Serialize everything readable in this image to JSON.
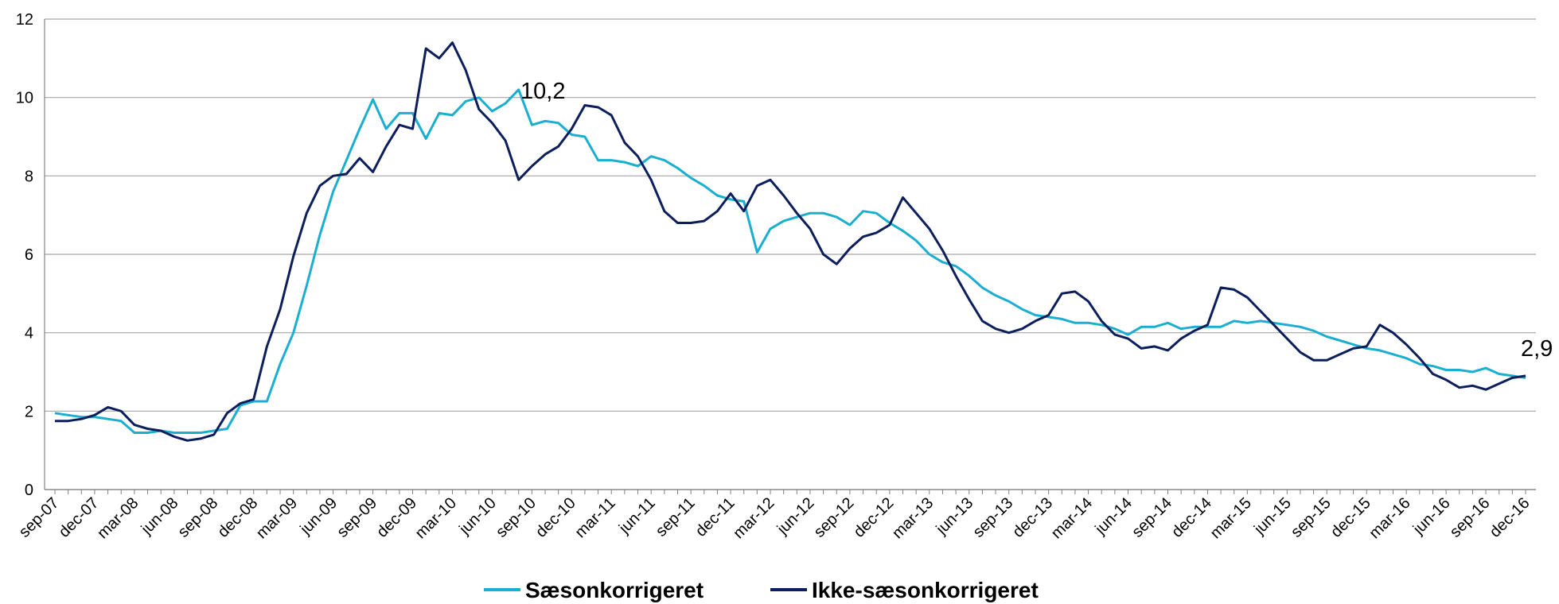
{
  "chart_data": {
    "type": "line",
    "categories": [
      "sep-07",
      null,
      null,
      "dec-07",
      null,
      null,
      "mar-08",
      null,
      null,
      "jun-08",
      null,
      null,
      "sep-08",
      null,
      null,
      "dec-08",
      null,
      null,
      "mar-09",
      null,
      null,
      "jun-09",
      null,
      null,
      "sep-09",
      null,
      null,
      "dec-09",
      null,
      null,
      "mar-10",
      null,
      null,
      "jun-10",
      null,
      null,
      "sep-10",
      null,
      null,
      "dec-10",
      null,
      null,
      "mar-11",
      null,
      null,
      "jun-11",
      null,
      null,
      "sep-11",
      null,
      null,
      "dec-11",
      null,
      null,
      "mar-12",
      null,
      null,
      "jun-12",
      null,
      null,
      "sep-12",
      null,
      null,
      "dec-12",
      null,
      null,
      "mar-13",
      null,
      null,
      "jun-13",
      null,
      null,
      "sep-13",
      null,
      null,
      "dec-13",
      null,
      null,
      "mar-14",
      null,
      null,
      "jun-14",
      null,
      null,
      "sep-14",
      null,
      null,
      "dec-14",
      null,
      null,
      "mar-15",
      null,
      null,
      "jun-15",
      null,
      null,
      "sep-15",
      null,
      null,
      "dec-15",
      null,
      null,
      "mar-16",
      null,
      null,
      "jun-16",
      null,
      null,
      "sep-16",
      null,
      null,
      "dec-16"
    ],
    "series": [
      {
        "name": "Sæsonkorrigeret",
        "color": "#1aafd0",
        "values": [
          1.95,
          1.9,
          1.85,
          1.85,
          1.8,
          1.75,
          1.45,
          1.45,
          1.5,
          1.45,
          1.45,
          1.45,
          1.5,
          1.55,
          2.15,
          2.25,
          2.25,
          3.2,
          4.0,
          5.2,
          6.5,
          7.6,
          8.4,
          9.2,
          9.95,
          9.2,
          9.6,
          9.6,
          8.95,
          9.6,
          9.55,
          9.9,
          10.0,
          9.65,
          9.85,
          10.2,
          9.3,
          9.4,
          9.35,
          9.05,
          9.0,
          8.4,
          8.4,
          8.35,
          8.25,
          8.5,
          8.4,
          8.2,
          7.95,
          7.75,
          7.5,
          7.4,
          7.35,
          6.05,
          6.65,
          6.85,
          6.95,
          7.05,
          7.05,
          6.95,
          6.75,
          7.1,
          7.05,
          6.8,
          6.6,
          6.35,
          6.0,
          5.8,
          5.7,
          5.45,
          5.15,
          4.95,
          4.8,
          4.6,
          4.45,
          4.4,
          4.35,
          4.25,
          4.25,
          4.2,
          4.1,
          3.95,
          4.15,
          4.15,
          4.25,
          4.1,
          4.15,
          4.15,
          4.15,
          4.3,
          4.25,
          4.3,
          4.25,
          4.2,
          4.15,
          4.05,
          3.9,
          3.8,
          3.7,
          3.6,
          3.55,
          3.45,
          3.35,
          3.2,
          3.15,
          3.05,
          3.05,
          3.0,
          3.1,
          2.95,
          2.9,
          2.85
        ]
      },
      {
        "name": "Ikke-sæsonkorrigeret",
        "color": "#0c1f5c",
        "values": [
          1.75,
          1.75,
          1.8,
          1.9,
          2.1,
          2.0,
          1.65,
          1.55,
          1.5,
          1.35,
          1.25,
          1.3,
          1.4,
          1.95,
          2.2,
          2.3,
          3.65,
          4.6,
          5.95,
          7.05,
          7.75,
          8.0,
          8.05,
          8.45,
          8.1,
          8.75,
          9.3,
          9.2,
          11.25,
          11.0,
          11.4,
          10.7,
          9.7,
          9.35,
          8.9,
          7.9,
          8.25,
          8.55,
          8.75,
          9.2,
          9.8,
          9.75,
          9.55,
          8.85,
          8.5,
          7.9,
          7.1,
          6.8,
          6.8,
          6.85,
          7.1,
          7.55,
          7.1,
          7.75,
          7.9,
          7.5,
          7.05,
          6.65,
          6.0,
          5.75,
          6.15,
          6.45,
          6.55,
          6.75,
          7.45,
          7.05,
          6.65,
          6.1,
          5.45,
          4.85,
          4.3,
          4.1,
          4.0,
          4.1,
          4.3,
          4.45,
          5.0,
          5.05,
          4.8,
          4.3,
          3.95,
          3.85,
          3.6,
          3.65,
          3.55,
          3.85,
          4.05,
          4.2,
          5.15,
          5.1,
          4.9,
          4.55,
          4.2,
          3.85,
          3.5,
          3.3,
          3.3,
          3.45,
          3.6,
          3.65,
          4.2,
          4.0,
          3.7,
          3.35,
          2.95,
          2.8,
          2.6,
          2.65,
          2.55,
          2.7,
          2.85,
          2.9
        ]
      }
    ],
    "annotations": [
      "10,2",
      "2,9"
    ],
    "ylim": [
      0,
      12
    ],
    "yticks": [
      0,
      2,
      4,
      6,
      8,
      10,
      12
    ],
    "grid": true,
    "legend": "bottom"
  }
}
